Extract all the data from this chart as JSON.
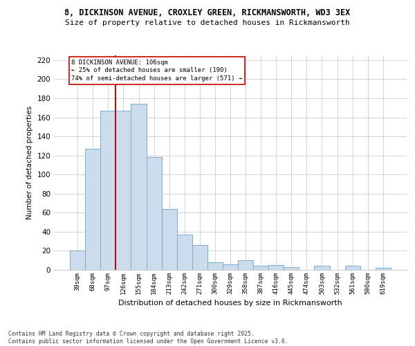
{
  "title_line1": "8, DICKINSON AVENUE, CROXLEY GREEN, RICKMANSWORTH, WD3 3EX",
  "title_line2": "Size of property relative to detached houses in Rickmansworth",
  "xlabel": "Distribution of detached houses by size in Rickmansworth",
  "ylabel": "Number of detached properties",
  "categories": [
    "39sqm",
    "68sqm",
    "97sqm",
    "126sqm",
    "155sqm",
    "184sqm",
    "213sqm",
    "242sqm",
    "271sqm",
    "300sqm",
    "329sqm",
    "358sqm",
    "387sqm",
    "416sqm",
    "445sqm",
    "474sqm",
    "503sqm",
    "532sqm",
    "561sqm",
    "590sqm",
    "619sqm"
  ],
  "values": [
    20,
    127,
    167,
    167,
    174,
    118,
    64,
    37,
    26,
    8,
    6,
    10,
    4,
    5,
    3,
    0,
    4,
    0,
    4,
    0,
    2
  ],
  "bar_color": "#ccdcec",
  "bar_edge_color": "#7aaccc",
  "ylim": [
    0,
    225
  ],
  "yticks": [
    0,
    20,
    40,
    60,
    80,
    100,
    120,
    140,
    160,
    180,
    200,
    220
  ],
  "vline_x": 2.5,
  "vline_color": "#cc0000",
  "annotation_text": "8 DICKINSON AVENUE: 106sqm\n← 25% of detached houses are smaller (190)\n74% of semi-detached houses are larger (571) →",
  "footer_text": "Contains HM Land Registry data © Crown copyright and database right 2025.\nContains public sector information licensed under the Open Government Licence v3.0.",
  "background_color": "#ffffff",
  "grid_color": "#cccccc"
}
